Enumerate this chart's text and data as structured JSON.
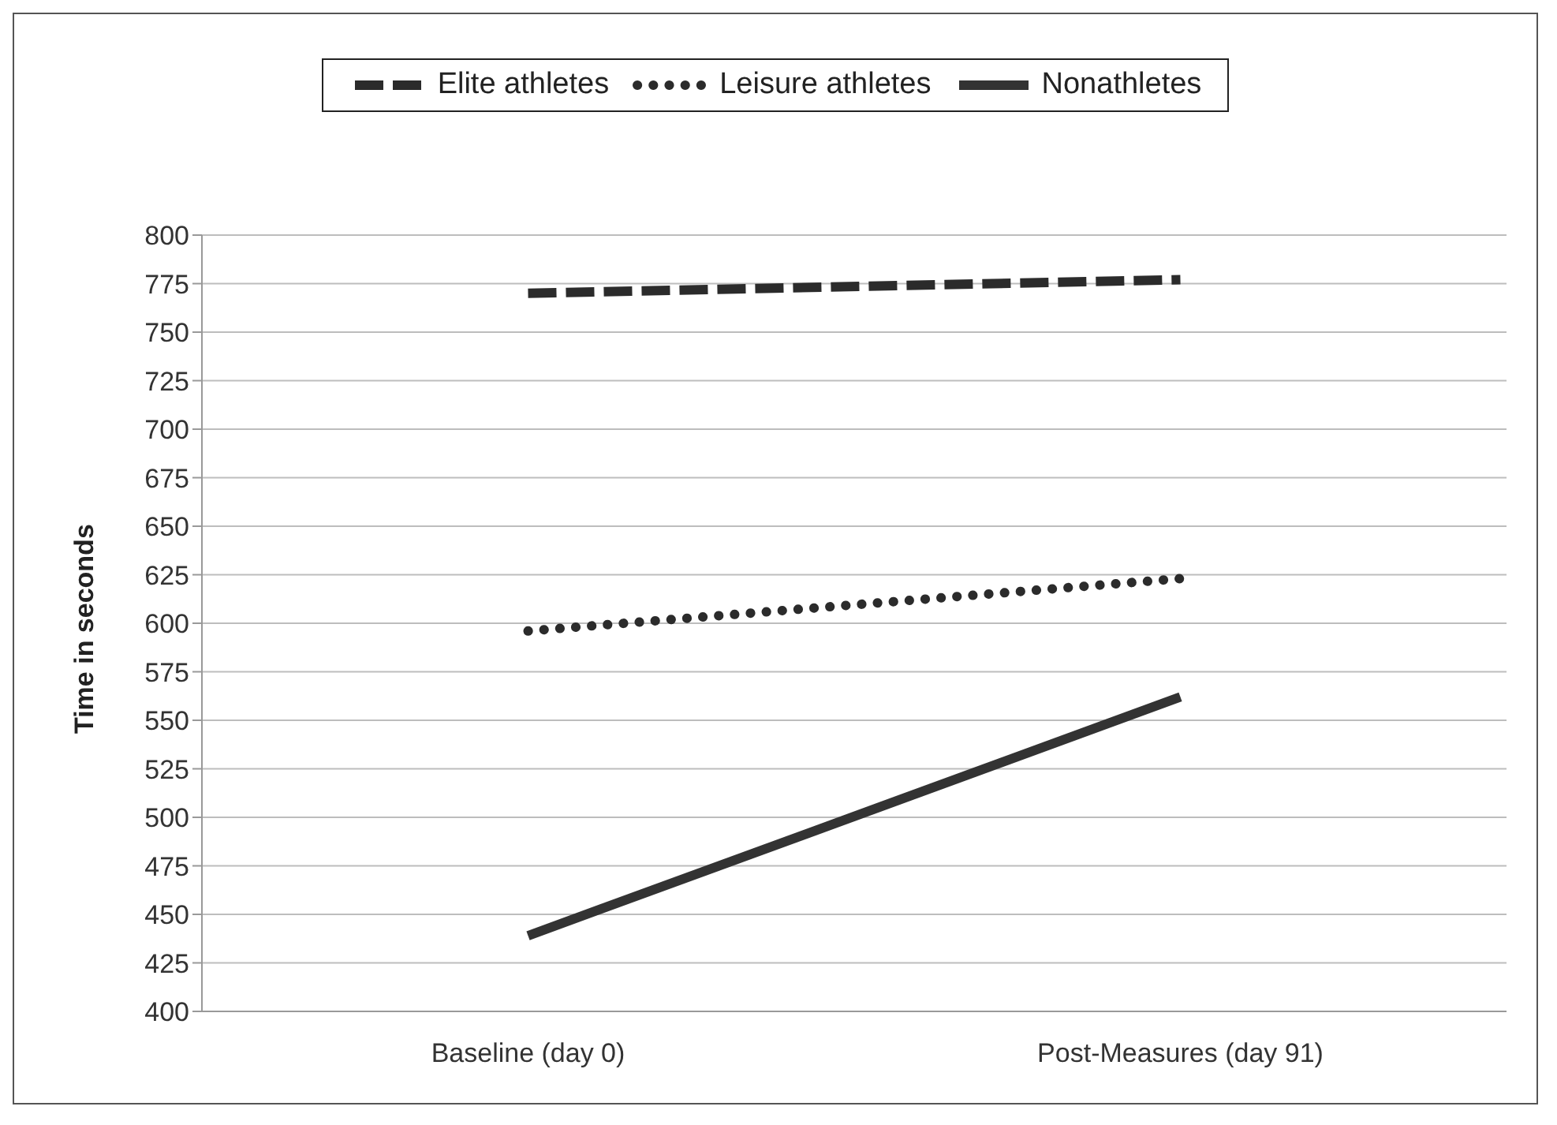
{
  "chart_data": {
    "type": "line",
    "ylabel": "Time in seconds",
    "categories": [
      "Baseline (day 0)",
      "Post-Measures (day 91)"
    ],
    "series": [
      {
        "name": "Elite athletes",
        "color": "#2b2b2b",
        "values": [
          770,
          777
        ],
        "line_style": "dashed"
      },
      {
        "name": "Leisure athletes",
        "color": "#2b2b2b",
        "values": [
          596,
          623
        ],
        "line_style": "dotted"
      },
      {
        "name": "Nonathletes",
        "color": "#333333",
        "values": [
          439,
          562
        ],
        "line_style": "solid"
      }
    ],
    "ylim": [
      400,
      800
    ],
    "yticks": [
      400,
      425,
      450,
      475,
      500,
      525,
      550,
      575,
      600,
      625,
      650,
      675,
      700,
      725,
      750,
      775,
      800
    ],
    "grid": "y",
    "legend": "top",
    "marker": "none"
  }
}
